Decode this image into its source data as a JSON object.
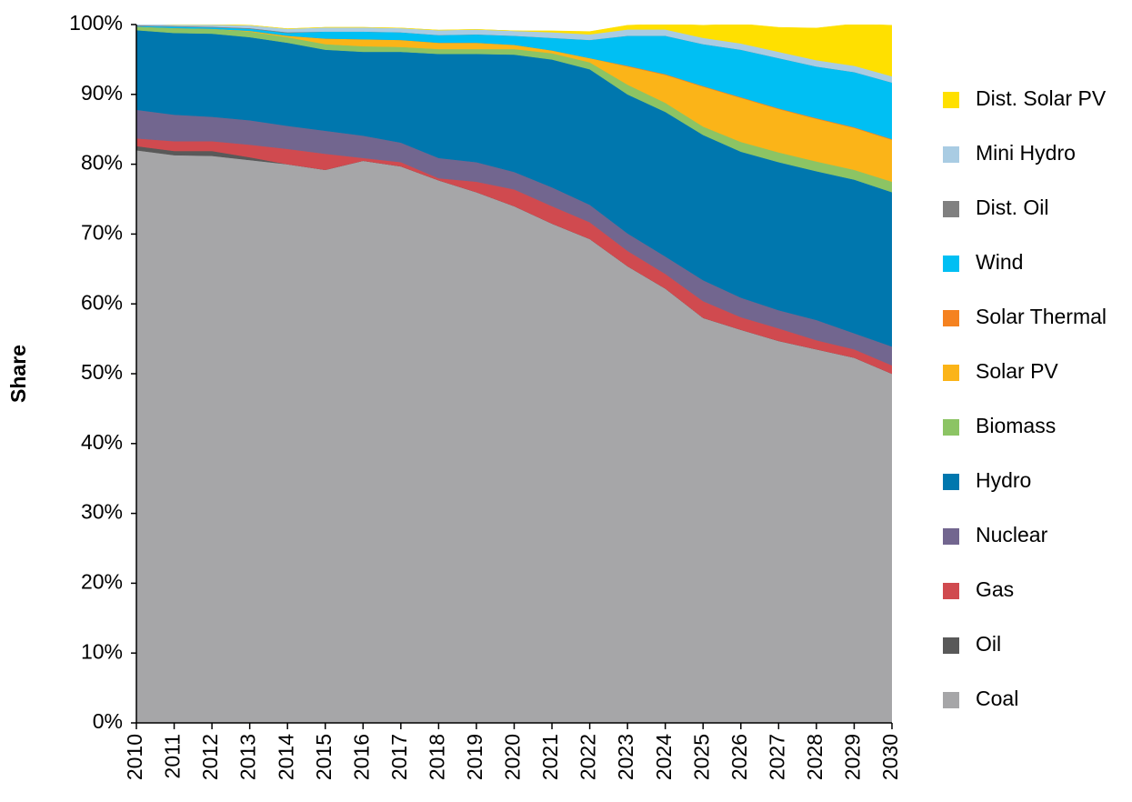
{
  "chart_data": {
    "type": "stacked-area",
    "y_label": "Share",
    "x": [
      "2010",
      "2011",
      "2012",
      "2013",
      "2014",
      "2015",
      "2016",
      "2017",
      "2018",
      "2019",
      "2020",
      "2021",
      "2022",
      "2023",
      "2024",
      "2025",
      "2026",
      "2027",
      "2028",
      "2029",
      "2030"
    ],
    "ylim": [
      0,
      100
    ],
    "yticks": [
      {
        "value": 0,
        "label": "0%"
      },
      {
        "value": 10,
        "label": "10%"
      },
      {
        "value": 20,
        "label": "20%"
      },
      {
        "value": 30,
        "label": "30%"
      },
      {
        "value": 40,
        "label": "40%"
      },
      {
        "value": 50,
        "label": "50%"
      },
      {
        "value": 60,
        "label": "60%"
      },
      {
        "value": 70,
        "label": "70%"
      },
      {
        "value": 80,
        "label": "80%"
      },
      {
        "value": 90,
        "label": "90%"
      },
      {
        "value": 100,
        "label": "100%"
      }
    ],
    "legend": "right",
    "series": [
      {
        "name": "Coal",
        "color": "#a6a6a8",
        "values": [
          82.0,
          81.3,
          81.2,
          80.6,
          80.0,
          79.2,
          80.5,
          79.7,
          77.7,
          76.0,
          74.0,
          71.5,
          69.3,
          65.4,
          62.2,
          58.0,
          56.3,
          54.7,
          53.5,
          52.3,
          50.0
        ]
      },
      {
        "name": "Oil",
        "color": "#595959",
        "values": [
          0.6,
          0.6,
          0.7,
          0.4,
          0,
          0,
          0,
          0,
          0,
          0,
          0,
          0,
          0,
          0,
          0,
          0,
          0,
          0,
          0,
          0,
          0
        ]
      },
      {
        "name": "Gas",
        "color": "#d04a4f",
        "values": [
          1.1,
          1.4,
          1.4,
          1.8,
          2.2,
          2.3,
          0.4,
          0.6,
          0.3,
          1.5,
          2.4,
          2.5,
          2.4,
          2.2,
          2.1,
          2.4,
          1.8,
          1.8,
          1.3,
          1.2,
          1.2
        ]
      },
      {
        "name": "Nuclear",
        "color": "#72668f",
        "values": [
          4.1,
          3.8,
          3.5,
          3.5,
          3.3,
          3.3,
          3.2,
          2.8,
          2.9,
          2.8,
          2.5,
          2.7,
          2.5,
          2.5,
          2.5,
          3.0,
          2.8,
          2.6,
          2.9,
          2.3,
          2.7
        ]
      },
      {
        "name": "Hydro",
        "color": "#0077ae",
        "values": [
          11.4,
          11.7,
          11.9,
          11.9,
          11.9,
          11.6,
          12.0,
          13.0,
          14.9,
          15.5,
          16.8,
          18.3,
          19.4,
          19.9,
          20.7,
          20.8,
          20.9,
          21.2,
          21.3,
          22.0,
          22.1
        ]
      },
      {
        "name": "Biomass",
        "color": "#8cc464",
        "values": [
          0.5,
          0.7,
          0.7,
          0.8,
          0.8,
          0.8,
          0.8,
          0.7,
          0.7,
          0.7,
          0.8,
          0.9,
          1.0,
          1.4,
          1.3,
          1.2,
          1.4,
          1.4,
          1.4,
          1.4,
          1.5
        ]
      },
      {
        "name": "Solar PV",
        "color": "#fbb418",
        "values": [
          0,
          0,
          0,
          0.1,
          0.2,
          0.8,
          1.0,
          1.0,
          0.9,
          0.9,
          0.6,
          0.4,
          0.6,
          2.6,
          4.0,
          5.7,
          6.3,
          6.2,
          6.1,
          6.0,
          6.0
        ]
      },
      {
        "name": "Solar Thermal",
        "color": "#f58220",
        "values": [
          0,
          0,
          0,
          0,
          0,
          0,
          0,
          0,
          0,
          0,
          0,
          0,
          0,
          0.1,
          0.1,
          0.1,
          0.1,
          0.1,
          0.1,
          0.1,
          0.1
        ]
      },
      {
        "name": "Wind",
        "color": "#00bff3",
        "values": [
          0.1,
          0.2,
          0.2,
          0.3,
          0.4,
          1.0,
          1.1,
          1.1,
          1.1,
          1.2,
          1.3,
          1.8,
          2.6,
          4.3,
          5.5,
          6.0,
          6.8,
          7.2,
          7.4,
          7.9,
          8.1
        ]
      },
      {
        "name": "Dist. Oil",
        "color": "#808080",
        "values": [
          0.1,
          0.1,
          0.1,
          0.1,
          0.1,
          0,
          0,
          0,
          0,
          0,
          0,
          0,
          0,
          0,
          0,
          0,
          0,
          0,
          0,
          0,
          0
        ]
      },
      {
        "name": "Mini Hydro",
        "color": "#a9cce3",
        "values": [
          0.2,
          0.2,
          0.3,
          0.4,
          0.5,
          0.6,
          0.6,
          0.6,
          0.7,
          0.7,
          0.7,
          0.8,
          0.8,
          0.9,
          0.9,
          0.9,
          0.9,
          0.9,
          0.9,
          0.9,
          0.9
        ]
      },
      {
        "name": "Dist. Solar PV",
        "color": "#ffe000",
        "values": [
          0,
          0,
          0,
          0,
          0,
          0,
          0,
          0,
          0,
          0,
          0,
          0.2,
          0.4,
          0.6,
          0.8,
          1.8,
          2.8,
          3.5,
          4.6,
          6.0,
          7.3
        ]
      }
    ]
  }
}
